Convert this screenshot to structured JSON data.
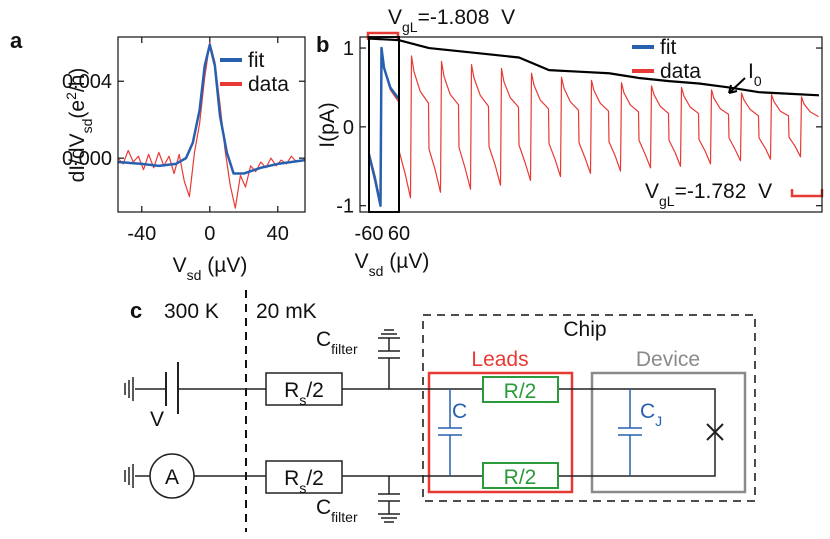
{
  "chart_data": [
    {
      "type": "line",
      "panel": "a",
      "xlabel": [
        "V",
        "sd",
        " (µV)"
      ],
      "ylabel": [
        "dI/dV",
        "sd",
        "(e",
        "2",
        "/h)"
      ],
      "xlim": [
        -54,
        56
      ],
      "ylim": [
        -0.0028,
        0.0063
      ],
      "xticks": [
        -40,
        0,
        40
      ],
      "yticks": [
        {
          "value": 0,
          "label": "0.000"
        },
        0.004
      ],
      "series": [
        {
          "name": "fit",
          "color": "#2860b0",
          "x": [
            -54,
            -40,
            -30,
            -20,
            -14,
            -10,
            -6,
            -3,
            0,
            3,
            6,
            10,
            14,
            20,
            30,
            40,
            56
          ],
          "values": [
            -0.0002,
            -0.0003,
            -0.0004,
            -0.0003,
            0.0,
            0.0008,
            0.0025,
            0.0048,
            0.0059,
            0.0048,
            0.0022,
            0.0003,
            -0.0008,
            -0.0008,
            -0.0005,
            -0.0003,
            -0.0001
          ]
        },
        {
          "name": "data",
          "color": "#e83a35",
          "x": [
            -54,
            -51,
            -48,
            -45,
            -42,
            -39,
            -36,
            -33,
            -30,
            -27,
            -24,
            -21,
            -18,
            -15,
            -12,
            -9,
            -6,
            -3,
            0,
            3,
            6,
            9,
            12,
            15,
            18,
            21,
            24,
            27,
            30,
            33,
            36,
            39,
            42,
            45,
            48,
            51,
            54
          ],
          "values": [
            0.0,
            -0.0003,
            0.0004,
            -0.0002,
            0.0001,
            -0.0006,
            0.0002,
            -0.0005,
            0.0003,
            -0.0004,
            0.0001,
            -0.0008,
            0.0002,
            -0.0012,
            -0.002,
            0.0003,
            0.0018,
            0.0042,
            0.006,
            0.005,
            0.0028,
            0.0004,
            -0.0014,
            -0.0026,
            -0.0009,
            -0.0015,
            -0.0004,
            -0.0007,
            -0.0002,
            -0.0005,
            0.0,
            -0.0004,
            -0.0001,
            -0.0003,
            0.0001,
            -0.0002,
            -0.0001
          ]
        }
      ]
    },
    {
      "type": "line",
      "panel": "b",
      "xlabel": [
        "V",
        "sd",
        " (µV)"
      ],
      "ylabel": "I(pA)",
      "xlim": [
        -96,
        1752
      ],
      "ylim": [
        -1.08,
        1.14
      ],
      "xticks": [
        -60,
        60
      ],
      "yticks": [
        -1,
        0,
        1
      ],
      "series": [
        {
          "name": "fit",
          "color": "#2860b0",
          "x": [
            -60,
            -35,
            -14,
            -10,
            0,
            25,
            58
          ],
          "values": [
            -0.35,
            -0.68,
            -1.0,
            1.0,
            0.75,
            0.5,
            0.36
          ]
        },
        {
          "name": "data",
          "color": "#e83a35",
          "x": [
            -60,
            -35,
            -14,
            -10,
            0,
            25,
            58,
            60,
            85,
            106,
            110,
            120,
            145,
            178,
            180,
            205,
            226,
            230,
            240,
            265,
            298,
            300,
            325,
            346,
            350,
            360,
            385,
            418,
            420,
            445,
            466,
            470,
            480,
            505,
            538,
            540,
            565,
            586,
            590,
            600,
            625,
            658,
            660,
            685,
            706,
            710,
            720,
            745,
            778,
            780,
            805,
            826,
            830,
            840,
            865,
            898,
            900,
            925,
            946,
            950,
            960,
            985,
            1018,
            1020,
            1045,
            1066,
            1070,
            1080,
            1105,
            1138,
            1140,
            1165,
            1186,
            1190,
            1200,
            1225,
            1258,
            1260,
            1285,
            1306,
            1310,
            1320,
            1345,
            1378,
            1380,
            1405,
            1426,
            1430,
            1440,
            1465,
            1498,
            1500,
            1525,
            1546,
            1550,
            1560,
            1585,
            1618,
            1620,
            1645,
            1666,
            1670,
            1680,
            1705,
            1738
          ],
          "values": [
            -0.32,
            -0.63,
            -0.95,
            0.95,
            0.74,
            0.47,
            0.32,
            -0.3,
            -0.6,
            -0.9,
            0.9,
            0.7,
            0.45,
            0.3,
            -0.28,
            -0.55,
            -0.83,
            0.83,
            0.64,
            0.41,
            0.28,
            -0.26,
            -0.53,
            -0.79,
            0.79,
            0.62,
            0.4,
            0.26,
            -0.25,
            -0.49,
            -0.74,
            0.74,
            0.57,
            0.37,
            0.25,
            -0.23,
            -0.46,
            -0.68,
            0.68,
            0.53,
            0.34,
            0.23,
            -0.21,
            -0.42,
            -0.63,
            0.63,
            0.49,
            0.32,
            0.21,
            -0.2,
            -0.4,
            -0.59,
            0.59,
            0.46,
            0.3,
            0.2,
            -0.19,
            -0.37,
            -0.56,
            0.56,
            0.43,
            0.28,
            0.19,
            -0.17,
            -0.35,
            -0.52,
            0.52,
            0.41,
            0.26,
            0.17,
            -0.17,
            -0.33,
            -0.5,
            0.5,
            0.39,
            0.25,
            0.17,
            -0.16,
            -0.31,
            -0.47,
            0.47,
            0.36,
            0.23,
            0.16,
            -0.14,
            -0.29,
            -0.43,
            0.43,
            0.34,
            0.22,
            0.14,
            -0.14,
            -0.27,
            -0.41,
            0.41,
            0.32,
            0.2,
            0.14,
            -0.13,
            -0.25,
            -0.38,
            0.38,
            0.29,
            0.19,
            0.13
          ]
        }
      ],
      "envelope": {
        "label": [
          "I",
          "0"
        ],
        "color": "#000000",
        "x": [
          -60,
          60,
          180,
          300,
          420,
          540,
          660,
          780,
          900,
          1020,
          1140,
          1260,
          1380,
          1500,
          1620,
          1740
        ],
        "values": [
          1.12,
          1.1,
          1.0,
          0.96,
          0.92,
          0.88,
          0.72,
          0.7,
          0.68,
          0.62,
          0.58,
          0.55,
          0.5,
          0.44,
          0.42,
          0.4
        ]
      },
      "annotations": [
        {
          "text": [
            "V",
            "gL",
            "=-1.808  V"
          ]
        },
        {
          "text": [
            "V",
            "gL",
            "=-1.782  V"
          ]
        }
      ]
    }
  ],
  "diagram": {
    "label": "c",
    "temperatures": [
      "300 K",
      "20 mK"
    ],
    "chip": "Chip",
    "leads": "Leads",
    "device": "Device",
    "source": "V",
    "ammeter": "A",
    "filter_capacitors": [
      [
        "C",
        "filter"
      ],
      [
        "C",
        "filter"
      ]
    ],
    "series_resistors": [
      [
        "R",
        "s",
        "/2"
      ],
      [
        "R",
        "s",
        "/2"
      ]
    ],
    "lead_resistors": [
      "R/2",
      "R/2"
    ],
    "lead_capacitor": "C",
    "junction_capacitor": [
      "C",
      "J"
    ]
  }
}
